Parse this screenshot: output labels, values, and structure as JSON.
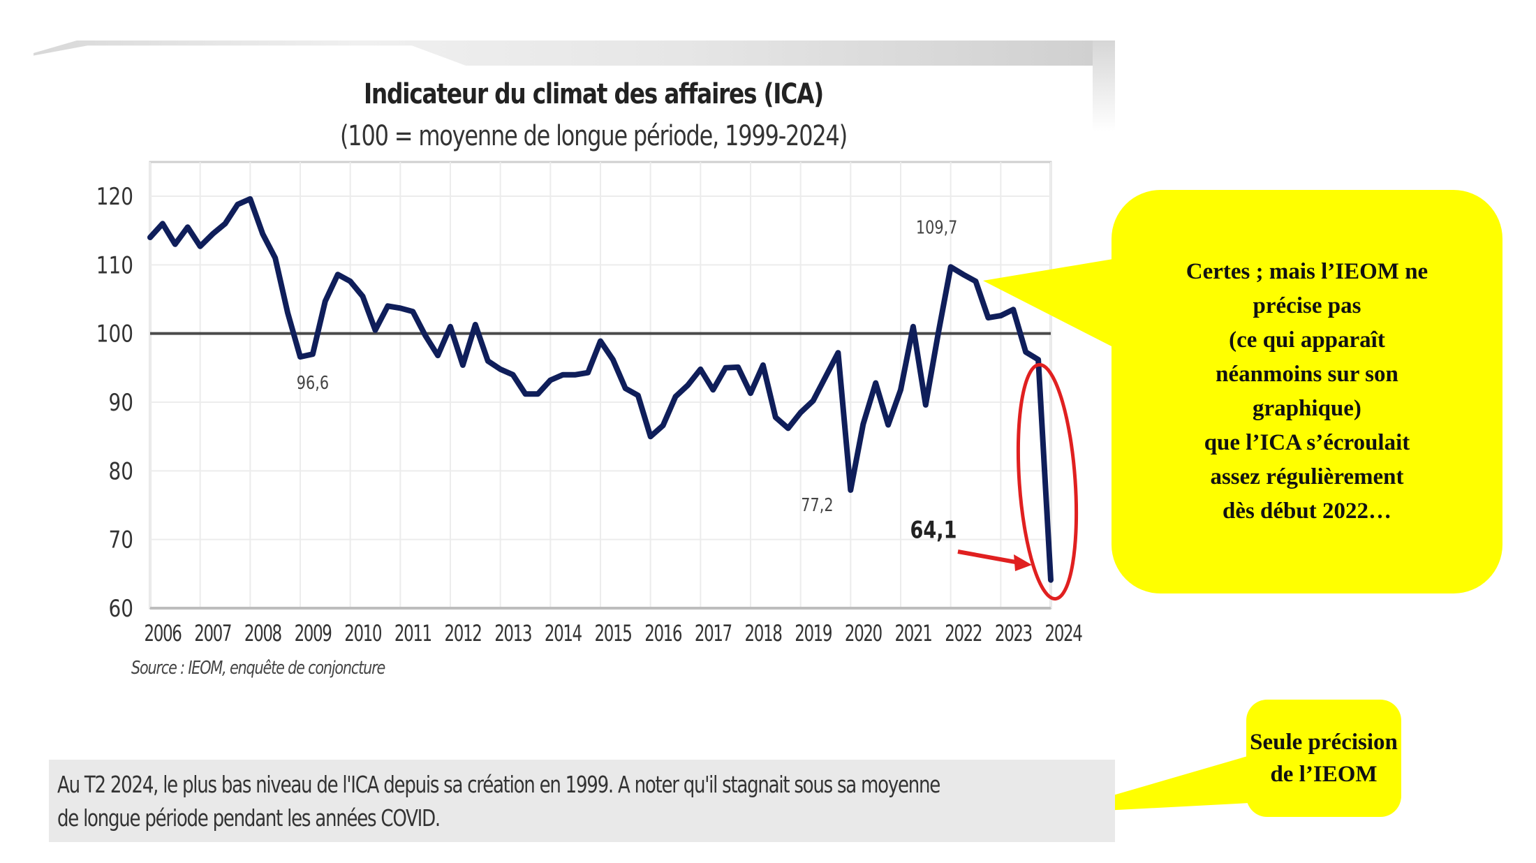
{
  "chart_data": {
    "type": "line",
    "title": "Indicateur du climat des affaires (ICA)",
    "subtitle": "(100 = moyenne de longue période, 1999-2024)",
    "xlabel": "",
    "ylabel": "",
    "xlim": [
      2006,
      2024.25
    ],
    "ylim": [
      60,
      120
    ],
    "yticks": [
      60,
      70,
      80,
      90,
      100,
      110,
      120
    ],
    "xticks": [
      "2006",
      "2007",
      "2008",
      "2009",
      "2010",
      "2011",
      "2012",
      "2013",
      "2014",
      "2015",
      "2016",
      "2017",
      "2018",
      "2019",
      "2020",
      "2021",
      "2022",
      "2023",
      "2024"
    ],
    "grid": true,
    "reference_line": 100,
    "series": [
      {
        "name": "ICA",
        "color": "#0f1e5a",
        "x": [
          2006.0,
          2006.25,
          2006.5,
          2006.75,
          2007.0,
          2007.25,
          2007.5,
          2007.75,
          2008.0,
          2008.25,
          2008.5,
          2008.75,
          2009.0,
          2009.25,
          2009.5,
          2009.75,
          2010.0,
          2010.25,
          2010.5,
          2010.75,
          2011.0,
          2011.25,
          2011.5,
          2011.75,
          2012.0,
          2012.25,
          2012.5,
          2012.75,
          2013.0,
          2013.25,
          2013.5,
          2013.75,
          2014.0,
          2014.25,
          2014.5,
          2014.75,
          2015.0,
          2015.25,
          2015.5,
          2015.75,
          2016.0,
          2016.25,
          2016.5,
          2016.75,
          2017.0,
          2017.25,
          2017.5,
          2017.75,
          2018.0,
          2018.25,
          2018.5,
          2018.75,
          2019.0,
          2019.25,
          2019.5,
          2019.75,
          2020.0,
          2020.25,
          2020.5,
          2020.75,
          2021.0,
          2021.25,
          2021.5,
          2021.75,
          2022.0,
          2022.25,
          2022.5,
          2022.75,
          2023.0,
          2023.25,
          2023.5,
          2023.75,
          2024.0
        ],
        "values": [
          114,
          116,
          113,
          115.5,
          112.7,
          114.5,
          116,
          118.8,
          119.6,
          114.5,
          111,
          103,
          96.6,
          97,
          104.7,
          108.6,
          107.6,
          105.4,
          100.5,
          104,
          103.7,
          103.2,
          99.7,
          96.8,
          101,
          95.4,
          101.3,
          96,
          94.8,
          94,
          91.2,
          91.2,
          93.2,
          94,
          94,
          94.3,
          98.9,
          96.2,
          92,
          91,
          85,
          86.6,
          90.8,
          92.5,
          94.8,
          91.8,
          95,
          95.1,
          91.3,
          95.4,
          87.8,
          86.2,
          88.5,
          90.2,
          93.7,
          97.2,
          77.2,
          86.8,
          92.8,
          86.7,
          91.8,
          101,
          89.6,
          100,
          109.7,
          108.6,
          107.6,
          102.3,
          102.6,
          103.5,
          97.3,
          96.2,
          64.1
        ]
      }
    ],
    "annotations": [
      {
        "text": "96,6",
        "x": 2009.25,
        "y": 96.6
      },
      {
        "text": "77,2",
        "x": 2019.75,
        "y": 77.2
      },
      {
        "text": "109,7",
        "x": 2022.0,
        "y": 109.7
      },
      {
        "text": "64,1",
        "x": 2024.0,
        "y": 64.1
      }
    ],
    "source": "Source :  IEOM, enquête de conjoncture"
  },
  "note": {
    "line1": "Au T2 2024, le plus bas niveau de l'ICA depuis sa création en 1999. A noter qu'il stagnait sous sa moyenne",
    "line2": "de longue période pendant les années COVID."
  },
  "callouts": {
    "main": "Certes ; mais l’IEOM ne\nprécise pas\n(ce qui apparaît\nnéanmoins sur son\ngraphique)\nque l’ICA s’écroulait\nassez régulièrement\ndès début 2022…",
    "secondary": "Seule précision\nde l’IEOM",
    "color": "#ffff00"
  },
  "highlight": {
    "ellipse_color": "#e02020",
    "arrow_color": "#e02020"
  }
}
